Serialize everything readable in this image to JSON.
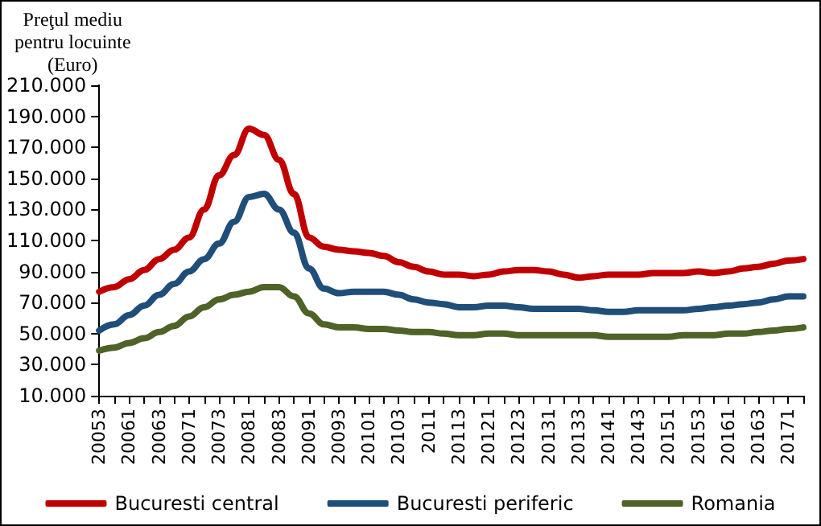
{
  "chart_data": {
    "type": "line",
    "ylabel": "Preţul mediu\npentru locuinte\n(Euro)",
    "categories": [
      "20053",
      null,
      "20061",
      null,
      "20063",
      null,
      "20071",
      null,
      "20073",
      null,
      "20081",
      null,
      "20083",
      null,
      "20091",
      null,
      "20093",
      null,
      "20101",
      null,
      "20103",
      null,
      "2011",
      null,
      "20113",
      null,
      "20121",
      null,
      "20123",
      null,
      "20131",
      null,
      "20133",
      null,
      "20141",
      null,
      "20143",
      null,
      "20151",
      null,
      "20153",
      null,
      "20161",
      null,
      "20163",
      null,
      "20171",
      null
    ],
    "series": [
      {
        "name": "Bucuresti central",
        "color": "#c00000",
        "values": [
          77000,
          80000,
          85000,
          91000,
          98000,
          104000,
          112000,
          130000,
          152000,
          165000,
          182000,
          178000,
          162000,
          140000,
          112000,
          106000,
          104000,
          103000,
          102000,
          100000,
          96000,
          93000,
          90000,
          88000,
          88000,
          87000,
          88000,
          90000,
          91000,
          91000,
          90000,
          88000,
          86000,
          87000,
          88000,
          88000,
          88000,
          89000,
          89000,
          89000,
          90000,
          89000,
          90000,
          92000,
          93000,
          95000,
          97000,
          98000
        ]
      },
      {
        "name": "Bucuresti periferic",
        "color": "#1f4e79",
        "values": [
          52000,
          56000,
          62000,
          68000,
          75000,
          82000,
          90000,
          98000,
          108000,
          122000,
          138000,
          140000,
          130000,
          115000,
          92000,
          79000,
          76000,
          77000,
          77000,
          77000,
          75000,
          72000,
          70000,
          69000,
          67000,
          67000,
          68000,
          68000,
          67000,
          66000,
          66000,
          66000,
          66000,
          65000,
          64000,
          64000,
          65000,
          65000,
          65000,
          65000,
          66000,
          67000,
          68000,
          69000,
          70000,
          72000,
          74000,
          74000
        ]
      },
      {
        "name": "Romania",
        "color": "#4f6228",
        "values": [
          39000,
          41000,
          44000,
          47000,
          51000,
          55000,
          61000,
          67000,
          72000,
          75000,
          77000,
          80000,
          80000,
          74000,
          63000,
          56000,
          54000,
          54000,
          53000,
          53000,
          52000,
          51000,
          51000,
          50000,
          49000,
          49000,
          50000,
          50000,
          49000,
          49000,
          49000,
          49000,
          49000,
          49000,
          48000,
          48000,
          48000,
          48000,
          48000,
          49000,
          49000,
          49000,
          50000,
          50000,
          51000,
          52000,
          53000,
          54000
        ]
      }
    ],
    "ylim": [
      10000,
      210000
    ],
    "yticks": [
      {
        "value": 10000,
        "label": "10.000"
      },
      {
        "value": 30000,
        "label": "30.000"
      },
      {
        "value": 50000,
        "label": "50.000"
      },
      {
        "value": 70000,
        "label": "70.000"
      },
      {
        "value": 90000,
        "label": "90.000"
      },
      {
        "value": 110000,
        "label": "110.000"
      },
      {
        "value": 130000,
        "label": "130.000"
      },
      {
        "value": 150000,
        "label": "150.000"
      },
      {
        "value": 170000,
        "label": "170.000"
      },
      {
        "value": 190000,
        "label": "190.000"
      },
      {
        "value": 210000,
        "label": "210.000"
      }
    ],
    "grid": false,
    "legend": "bottom",
    "marker": "none",
    "line_style": "solid"
  }
}
